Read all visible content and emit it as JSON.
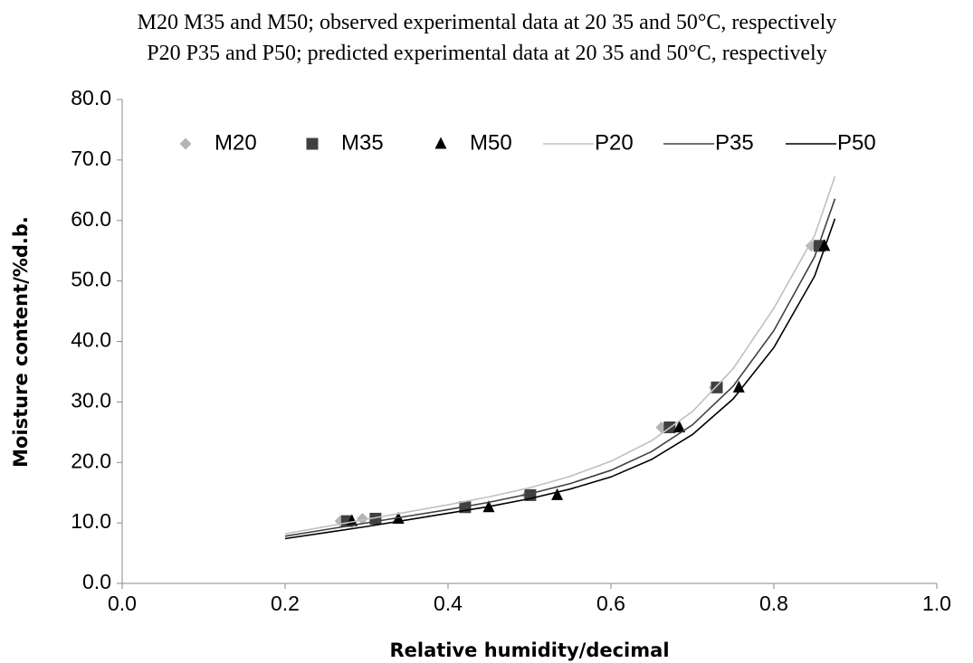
{
  "chart_data": {
    "type": "scatter",
    "annotations": [
      "M20 M35 and M50; observed experimental data at 20 35 and 50°C, respectively",
      "P20 P35 and P50; predicted experimental data at 20 35 and 50°C, respectively"
    ],
    "x_label": "Relative humidity/decimal",
    "y_label": "Moisture content/%d.b.",
    "xlim": [
      0,
      1
    ],
    "ylim": [
      0,
      80
    ],
    "xticks": [
      {
        "value": 0,
        "label": "0.0"
      },
      {
        "value": 0.2,
        "label": "0.2"
      },
      {
        "value": 0.4,
        "label": "0.4"
      },
      {
        "value": 0.6,
        "label": "0.6"
      },
      {
        "value": 0.8,
        "label": "0.8"
      },
      {
        "value": 1,
        "label": "1.0"
      }
    ],
    "yticks": [
      {
        "value": 0,
        "label": "0.0"
      },
      {
        "value": 10,
        "label": "10.0"
      },
      {
        "value": 20,
        "label": "20.0"
      },
      {
        "value": 30,
        "label": "30.0"
      },
      {
        "value": 40,
        "label": "40.0"
      },
      {
        "value": 50,
        "label": "50.0"
      },
      {
        "value": 60,
        "label": "60.0"
      },
      {
        "value": 70,
        "label": "70.0"
      },
      {
        "value": 80,
        "label": "80.0"
      }
    ],
    "legend": "top",
    "series": [
      {
        "name": "M20",
        "color": "#b4b4b4",
        "marker": "diamond",
        "x": [
          0.268,
          0.295,
          0.42,
          0.497,
          0.662,
          0.727,
          0.846
        ],
        "values": [
          10.3,
          10.7,
          12.6,
          14.6,
          25.8,
          32.4,
          55.8
        ]
      },
      {
        "name": "M35",
        "color": "#404040",
        "marker": "square",
        "x": [
          0.276,
          0.311,
          0.421,
          0.501,
          0.672,
          0.73,
          0.856
        ],
        "values": [
          10.3,
          10.7,
          12.6,
          14.6,
          25.8,
          32.4,
          55.8
        ]
      },
      {
        "name": "M50",
        "color": "#000000",
        "marker": "triangle",
        "x": [
          0.282,
          0.339,
          0.45,
          0.534,
          0.684,
          0.757,
          0.862
        ],
        "values": [
          10.3,
          10.7,
          12.6,
          14.6,
          25.8,
          32.4,
          55.8
        ]
      },
      {
        "name": "P20",
        "color": "#c0c0c0",
        "marker": "line",
        "x": [
          0.2,
          0.25,
          0.3,
          0.35,
          0.4,
          0.45,
          0.5,
          0.55,
          0.6,
          0.65,
          0.7,
          0.75,
          0.8,
          0.85,
          0.875
        ],
        "values": [
          8.2,
          9.4,
          10.6,
          11.8,
          13.0,
          14.3,
          15.8,
          17.7,
          20.2,
          23.6,
          28.4,
          35.5,
          45.5,
          57.5,
          67.3
        ]
      },
      {
        "name": "P35",
        "color": "#404040",
        "marker": "line",
        "x": [
          0.2,
          0.25,
          0.3,
          0.35,
          0.4,
          0.45,
          0.5,
          0.55,
          0.6,
          0.65,
          0.7,
          0.75,
          0.8,
          0.85,
          0.875
        ],
        "values": [
          7.8,
          8.9,
          10.0,
          11.1,
          12.2,
          13.4,
          14.8,
          16.5,
          18.7,
          21.8,
          26.2,
          32.6,
          41.8,
          54.0,
          63.6
        ]
      },
      {
        "name": "P50",
        "color": "#000000",
        "marker": "line",
        "x": [
          0.2,
          0.25,
          0.3,
          0.35,
          0.4,
          0.45,
          0.5,
          0.55,
          0.6,
          0.65,
          0.7,
          0.75,
          0.8,
          0.85,
          0.875
        ],
        "values": [
          7.4,
          8.4,
          9.4,
          10.5,
          11.6,
          12.7,
          14.0,
          15.6,
          17.6,
          20.5,
          24.6,
          30.5,
          39.0,
          50.8,
          60.3
        ]
      }
    ]
  }
}
